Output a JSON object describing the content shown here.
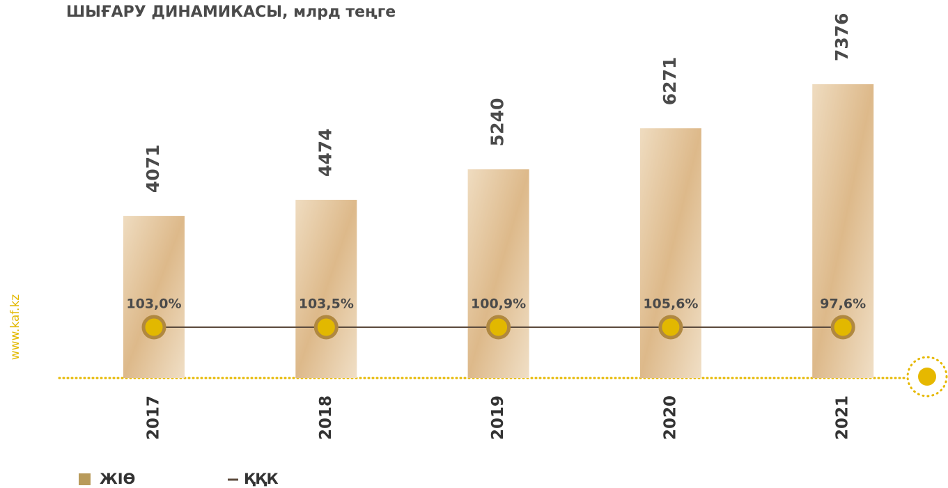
{
  "chart_data": {
    "type": "bar",
    "title": "ШЫҒАРУ ДИНАМИКАСЫ, млрд теңге",
    "categories": [
      "2017",
      "2018",
      "2019",
      "2020",
      "2021"
    ],
    "series": [
      {
        "name": "ЖІӨ",
        "color": "#b89a5a",
        "values": [
          4071,
          4474,
          5240,
          6271,
          7376
        ]
      },
      {
        "name": "ҚҚК",
        "type": "line",
        "color": "#5b4a3c",
        "values": [
          103.0,
          103.5,
          100.9,
          105.6,
          97.6
        ],
        "value_labels": [
          "103,0%",
          "103,5%",
          "100,9%",
          "105,6%",
          "97,6%"
        ]
      }
    ]
  },
  "source": "www.kaf.kz"
}
